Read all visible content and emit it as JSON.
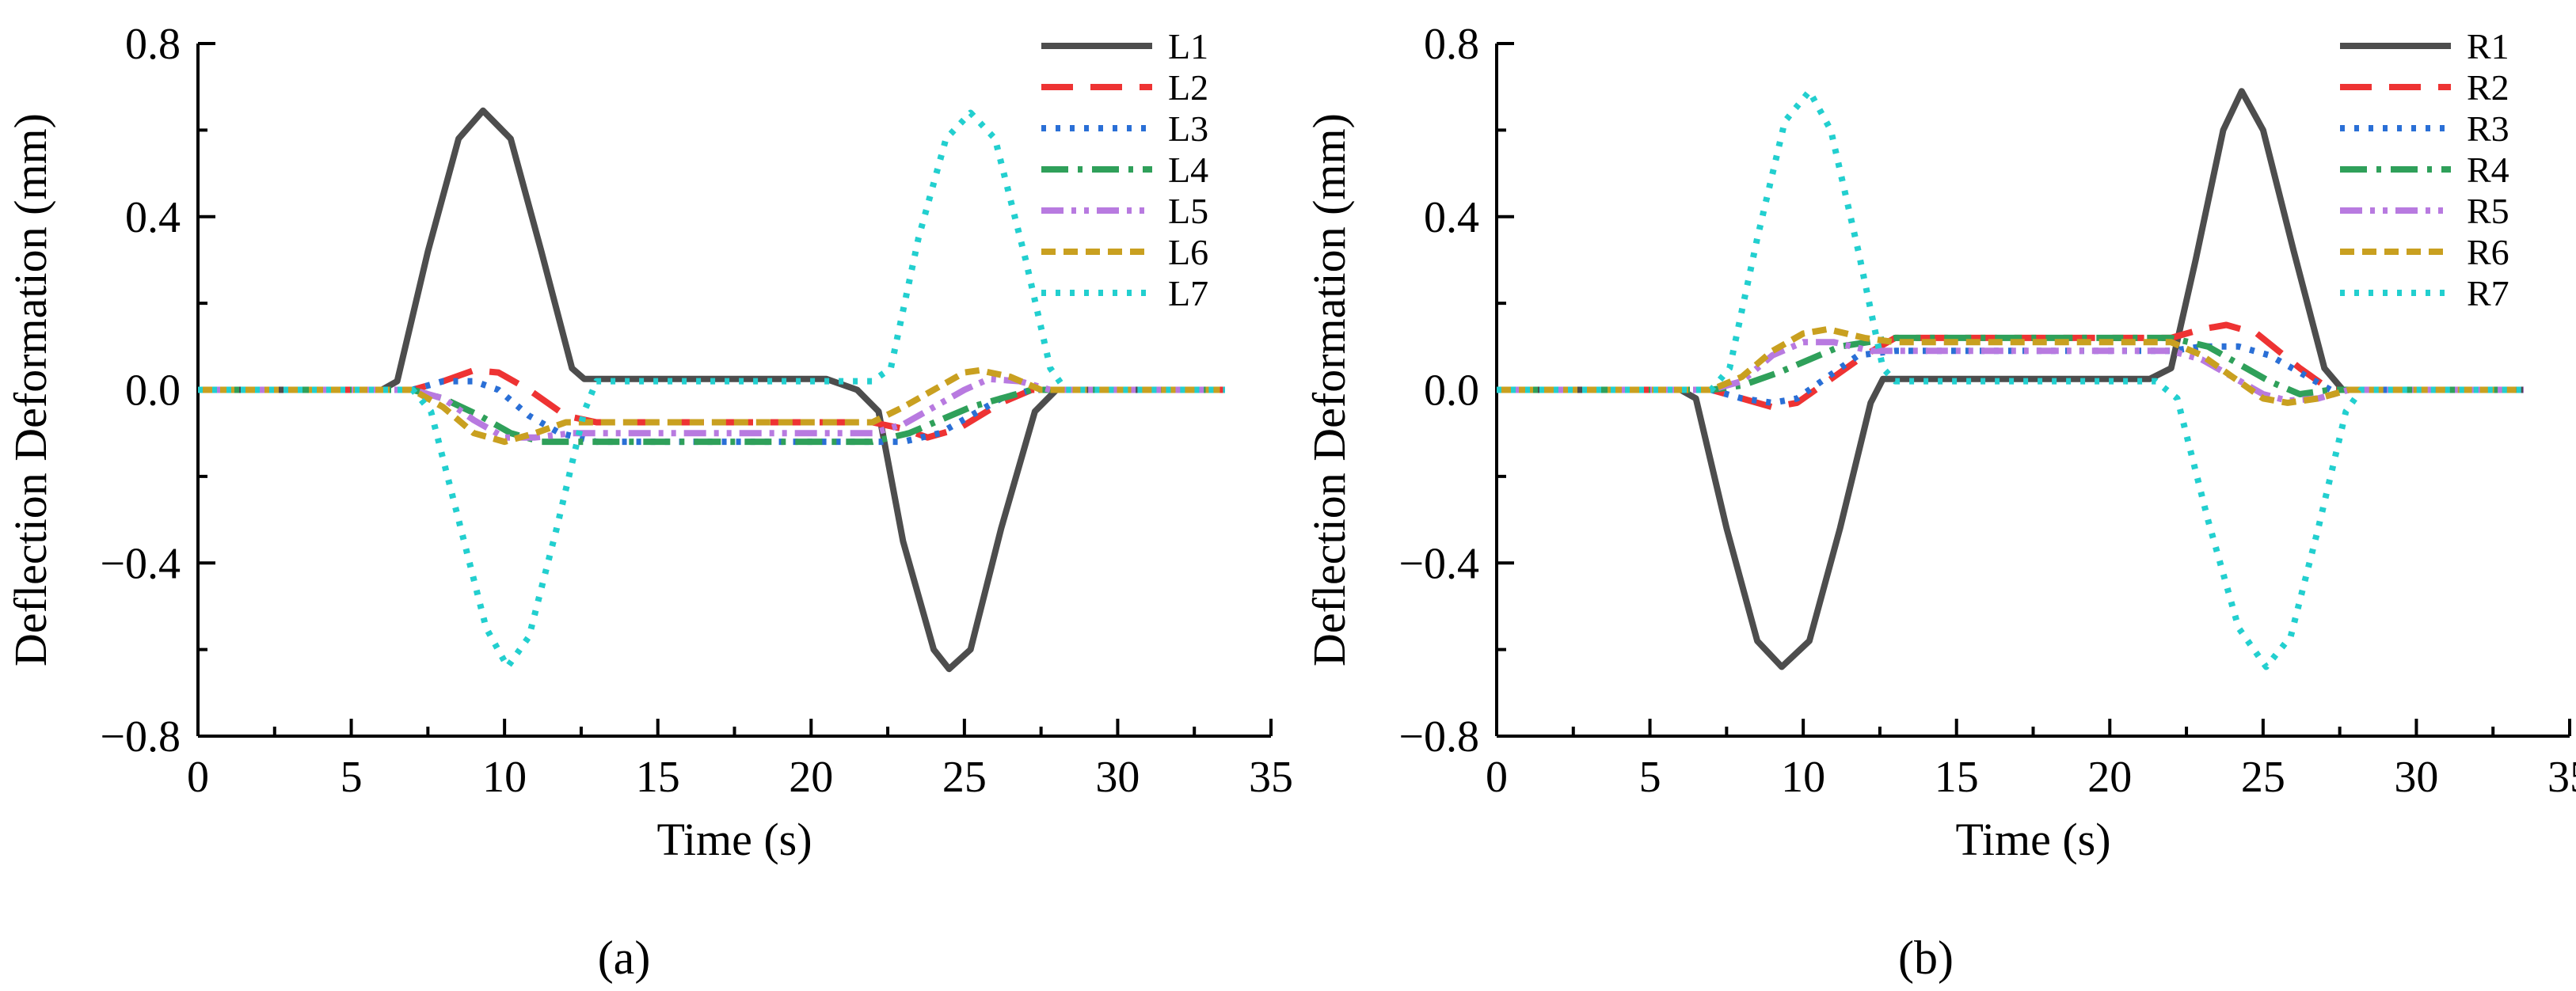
{
  "figure": {
    "panel_labels": [
      "(a)",
      "(b)"
    ]
  },
  "chart_data": [
    {
      "type": "line",
      "panel": "a",
      "xlabel": "Time (s)",
      "ylabel": "Deflection Deformation (mm)",
      "xlim": [
        0,
        35
      ],
      "ylim": [
        -0.8,
        0.8
      ],
      "xticks": [
        0,
        5,
        10,
        15,
        20,
        25,
        30,
        35
      ],
      "yticks": [
        -0.8,
        -0.4,
        0.0,
        0.4,
        0.8
      ],
      "ytick_labels": [
        "−0.8",
        "−0.4",
        "0.0",
        "0.4",
        "0.8"
      ],
      "legend_position": "top-right",
      "series": [
        {
          "name": "L1",
          "color": "#4d4d4d",
          "dash": "solid",
          "points": [
            [
              0,
              0
            ],
            [
              6,
              0
            ],
            [
              6.5,
              0.02
            ],
            [
              7.5,
              0.32
            ],
            [
              8.5,
              0.58
            ],
            [
              9.3,
              0.645
            ],
            [
              10.2,
              0.58
            ],
            [
              11.2,
              0.32
            ],
            [
              12.2,
              0.05
            ],
            [
              12.6,
              0.025
            ],
            [
              20.5,
              0.025
            ],
            [
              21.5,
              0.0
            ],
            [
              22.2,
              -0.05
            ],
            [
              23,
              -0.35
            ],
            [
              24,
              -0.6
            ],
            [
              24.5,
              -0.645
            ],
            [
              25.2,
              -0.6
            ],
            [
              26.2,
              -0.32
            ],
            [
              27.3,
              -0.05
            ],
            [
              28,
              0
            ],
            [
              33.5,
              0
            ]
          ]
        },
        {
          "name": "L2",
          "color": "#ee3333",
          "dash": "long-dash",
          "points": [
            [
              0,
              0
            ],
            [
              7,
              0
            ],
            [
              8,
              0.02
            ],
            [
              9,
              0.045
            ],
            [
              9.8,
              0.04
            ],
            [
              10.8,
              0.0
            ],
            [
              12,
              -0.06
            ],
            [
              13,
              -0.075
            ],
            [
              22,
              -0.075
            ],
            [
              23,
              -0.09
            ],
            [
              23.8,
              -0.11
            ],
            [
              24.8,
              -0.09
            ],
            [
              26.2,
              -0.03
            ],
            [
              27.2,
              0
            ],
            [
              33.5,
              0
            ]
          ]
        },
        {
          "name": "L3",
          "color": "#2a6fd6",
          "dash": "dotted",
          "points": [
            [
              0,
              0
            ],
            [
              7,
              0
            ],
            [
              8,
              0.02
            ],
            [
              9,
              0.02
            ],
            [
              9.8,
              0.0
            ],
            [
              10.8,
              -0.06
            ],
            [
              11.8,
              -0.1
            ],
            [
              13,
              -0.12
            ],
            [
              22,
              -0.12
            ],
            [
              23,
              -0.12
            ],
            [
              24.2,
              -0.1
            ],
            [
              25.2,
              -0.06
            ],
            [
              26.2,
              -0.02
            ],
            [
              27.2,
              0
            ],
            [
              33.5,
              0
            ]
          ]
        },
        {
          "name": "L4",
          "color": "#2fa05a",
          "dash": "dash-dot",
          "points": [
            [
              0,
              0
            ],
            [
              7,
              0
            ],
            [
              8,
              -0.02
            ],
            [
              9.2,
              -0.06
            ],
            [
              10.2,
              -0.1
            ],
            [
              11.2,
              -0.12
            ],
            [
              13,
              -0.12
            ],
            [
              22,
              -0.12
            ],
            [
              23.2,
              -0.1
            ],
            [
              24.2,
              -0.07
            ],
            [
              25.2,
              -0.04
            ],
            [
              26.2,
              -0.02
            ],
            [
              27.2,
              0
            ],
            [
              33.5,
              0
            ]
          ]
        },
        {
          "name": "L5",
          "color": "#b87ae0",
          "dash": "dash-dot-dot",
          "points": [
            [
              0,
              0
            ],
            [
              7,
              0
            ],
            [
              8,
              -0.02
            ],
            [
              9,
              -0.07
            ],
            [
              10,
              -0.11
            ],
            [
              11,
              -0.11
            ],
            [
              12.2,
              -0.1
            ],
            [
              22,
              -0.1
            ],
            [
              23,
              -0.08
            ],
            [
              24,
              -0.04
            ],
            [
              25,
              0.0
            ],
            [
              25.8,
              0.025
            ],
            [
              26.8,
              0.02
            ],
            [
              27.8,
              0
            ],
            [
              33.5,
              0
            ]
          ]
        },
        {
          "name": "L6",
          "color": "#c9a020",
          "dash": "short-dash",
          "points": [
            [
              0,
              0
            ],
            [
              7,
              0
            ],
            [
              8,
              -0.04
            ],
            [
              9,
              -0.1
            ],
            [
              10,
              -0.12
            ],
            [
              11,
              -0.1
            ],
            [
              12,
              -0.075
            ],
            [
              22,
              -0.075
            ],
            [
              23,
              -0.04
            ],
            [
              24,
              0.0
            ],
            [
              25,
              0.04
            ],
            [
              25.5,
              0.045
            ],
            [
              26.5,
              0.03
            ],
            [
              27.5,
              0
            ],
            [
              33.5,
              0
            ]
          ]
        },
        {
          "name": "L7",
          "color": "#22cfcf",
          "dash": "dotted",
          "points": [
            [
              0,
              0
            ],
            [
              7,
              0
            ],
            [
              7.6,
              -0.05
            ],
            [
              8.5,
              -0.3
            ],
            [
              9.4,
              -0.55
            ],
            [
              10.1,
              -0.64
            ],
            [
              10.8,
              -0.57
            ],
            [
              11.7,
              -0.32
            ],
            [
              12.6,
              -0.05
            ],
            [
              13,
              0.02
            ],
            [
              22,
              0.02
            ],
            [
              22.6,
              0.05
            ],
            [
              23.5,
              0.35
            ],
            [
              24.4,
              0.58
            ],
            [
              25.2,
              0.64
            ],
            [
              26,
              0.58
            ],
            [
              27,
              0.3
            ],
            [
              27.8,
              0.05
            ],
            [
              28.3,
              0
            ],
            [
              33.5,
              0
            ]
          ]
        }
      ]
    },
    {
      "type": "line",
      "panel": "b",
      "xlabel": "Time (s)",
      "ylabel": "Deflection Deformation (mm)",
      "xlim": [
        0,
        35
      ],
      "ylim": [
        -0.8,
        0.8
      ],
      "xticks": [
        0,
        5,
        10,
        15,
        20,
        25,
        30,
        35
      ],
      "yticks": [
        -0.8,
        -0.4,
        0.0,
        0.4,
        0.8
      ],
      "ytick_labels": [
        "−0.8",
        "−0.4",
        "0.0",
        "0.4",
        "0.8"
      ],
      "legend_position": "top-right",
      "series": [
        {
          "name": "R1",
          "color": "#4d4d4d",
          "dash": "solid",
          "points": [
            [
              0,
              0
            ],
            [
              6,
              0
            ],
            [
              6.5,
              -0.02
            ],
            [
              7.5,
              -0.32
            ],
            [
              8.5,
              -0.58
            ],
            [
              9.3,
              -0.64
            ],
            [
              10.2,
              -0.58
            ],
            [
              11.2,
              -0.32
            ],
            [
              12.2,
              -0.03
            ],
            [
              12.6,
              0.025
            ],
            [
              21.3,
              0.025
            ],
            [
              22,
              0.05
            ],
            [
              22.8,
              0.3
            ],
            [
              23.7,
              0.6
            ],
            [
              24.3,
              0.69
            ],
            [
              25,
              0.6
            ],
            [
              26,
              0.32
            ],
            [
              27,
              0.05
            ],
            [
              27.6,
              0
            ],
            [
              33.5,
              0
            ]
          ]
        },
        {
          "name": "R2",
          "color": "#ee3333",
          "dash": "long-dash",
          "points": [
            [
              0,
              0
            ],
            [
              7,
              0
            ],
            [
              8,
              -0.02
            ],
            [
              9,
              -0.04
            ],
            [
              9.8,
              -0.03
            ],
            [
              10.8,
              0.02
            ],
            [
              12,
              0.08
            ],
            [
              13,
              0.12
            ],
            [
              22,
              0.12
            ],
            [
              23,
              0.14
            ],
            [
              23.8,
              0.15
            ],
            [
              24.8,
              0.13
            ],
            [
              26.2,
              0.05
            ],
            [
              27.2,
              0
            ],
            [
              33.5,
              0
            ]
          ]
        },
        {
          "name": "R3",
          "color": "#2a6fd6",
          "dash": "dotted",
          "points": [
            [
              0,
              0
            ],
            [
              7,
              0
            ],
            [
              8,
              -0.02
            ],
            [
              9,
              -0.03
            ],
            [
              9.8,
              -0.02
            ],
            [
              10.8,
              0.03
            ],
            [
              11.8,
              0.08
            ],
            [
              13,
              0.09
            ],
            [
              22,
              0.09
            ],
            [
              23,
              0.1
            ],
            [
              24.2,
              0.1
            ],
            [
              25.2,
              0.08
            ],
            [
              26.2,
              0.04
            ],
            [
              27.2,
              0
            ],
            [
              33.5,
              0
            ]
          ]
        },
        {
          "name": "R4",
          "color": "#2fa05a",
          "dash": "dash-dot",
          "points": [
            [
              0,
              0
            ],
            [
              7,
              0
            ],
            [
              8,
              0.01
            ],
            [
              9.2,
              0.04
            ],
            [
              10.2,
              0.07
            ],
            [
              11.2,
              0.1
            ],
            [
              13,
              0.12
            ],
            [
              22,
              0.12
            ],
            [
              23.2,
              0.1
            ],
            [
              24.2,
              0.06
            ],
            [
              25.2,
              0.02
            ],
            [
              26.2,
              -0.01
            ],
            [
              27.2,
              0
            ],
            [
              33.5,
              0
            ]
          ]
        },
        {
          "name": "R5",
          "color": "#b87ae0",
          "dash": "dash-dot-dot",
          "points": [
            [
              0,
              0
            ],
            [
              7,
              0
            ],
            [
              8,
              0.02
            ],
            [
              9,
              0.08
            ],
            [
              10,
              0.11
            ],
            [
              11,
              0.11
            ],
            [
              12.2,
              0.09
            ],
            [
              22,
              0.09
            ],
            [
              23,
              0.07
            ],
            [
              24,
              0.03
            ],
            [
              25,
              -0.01
            ],
            [
              25.8,
              -0.025
            ],
            [
              26.8,
              -0.02
            ],
            [
              27.8,
              0
            ],
            [
              33.5,
              0
            ]
          ]
        },
        {
          "name": "R6",
          "color": "#c9a020",
          "dash": "short-dash",
          "points": [
            [
              0,
              0
            ],
            [
              7,
              0
            ],
            [
              8,
              0.03
            ],
            [
              9,
              0.09
            ],
            [
              10,
              0.13
            ],
            [
              10.8,
              0.14
            ],
            [
              12,
              0.12
            ],
            [
              13,
              0.11
            ],
            [
              22,
              0.11
            ],
            [
              23,
              0.08
            ],
            [
              24,
              0.03
            ],
            [
              25,
              -0.02
            ],
            [
              25.8,
              -0.03
            ],
            [
              26.8,
              -0.02
            ],
            [
              27.8,
              0
            ],
            [
              33.5,
              0
            ]
          ]
        },
        {
          "name": "R7",
          "color": "#22cfcf",
          "dash": "dotted",
          "points": [
            [
              0,
              0
            ],
            [
              7,
              0
            ],
            [
              7.6,
              0.05
            ],
            [
              8.5,
              0.35
            ],
            [
              9.4,
              0.62
            ],
            [
              10.2,
              0.69
            ],
            [
              10.9,
              0.6
            ],
            [
              11.8,
              0.32
            ],
            [
              12.6,
              0.05
            ],
            [
              13,
              0.02
            ],
            [
              21.5,
              0.02
            ],
            [
              22.2,
              -0.02
            ],
            [
              23.2,
              -0.3
            ],
            [
              24.2,
              -0.55
            ],
            [
              25.1,
              -0.64
            ],
            [
              25.9,
              -0.57
            ],
            [
              26.8,
              -0.32
            ],
            [
              27.7,
              -0.05
            ],
            [
              28.2,
              0
            ],
            [
              33.5,
              0
            ]
          ]
        }
      ]
    }
  ]
}
